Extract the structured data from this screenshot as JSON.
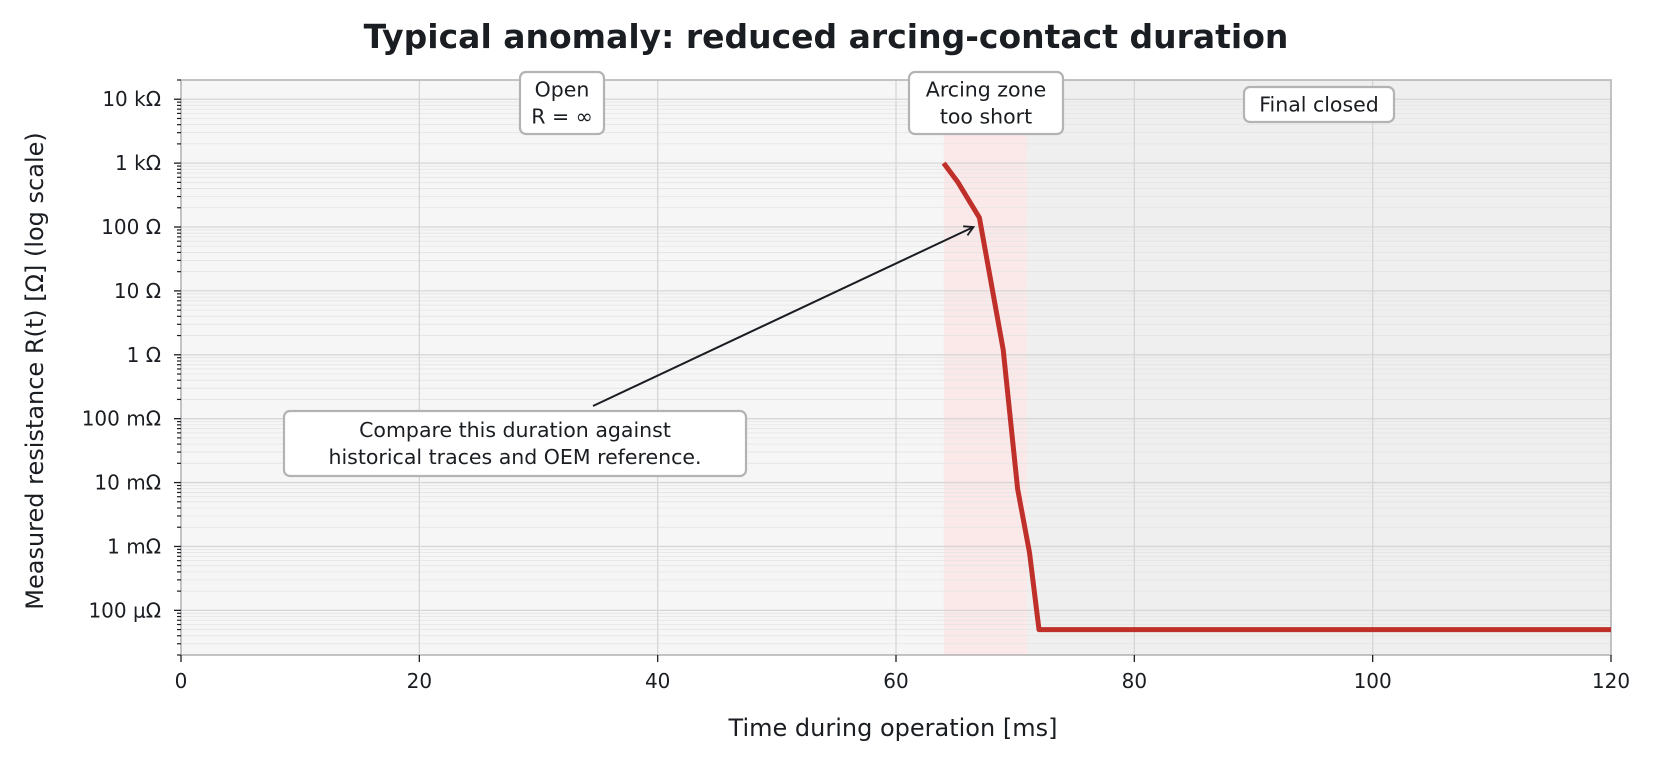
{
  "chart_data": {
    "type": "line",
    "title": "Typical anomaly: reduced arcing-contact duration",
    "xlabel": "Time during operation [ms]",
    "ylabel": "Measured resistance R(t) [Ω] (log scale)",
    "xlim": [
      0,
      120
    ],
    "ylim": [
      2e-05,
      20000
    ],
    "yscale": "log",
    "grid": true,
    "x_ticks": [
      0,
      20,
      40,
      60,
      80,
      100,
      120
    ],
    "y_ticks": [
      {
        "value": 0.0001,
        "label": "100 μΩ"
      },
      {
        "value": 0.001,
        "label": "1 mΩ"
      },
      {
        "value": 0.01,
        "label": "10 mΩ"
      },
      {
        "value": 0.1,
        "label": "100 mΩ"
      },
      {
        "value": 1,
        "label": "1 Ω"
      },
      {
        "value": 10,
        "label": "10 Ω"
      },
      {
        "value": 100,
        "label": "100 Ω"
      },
      {
        "value": 1000,
        "label": "1 kΩ"
      },
      {
        "value": 10000,
        "label": "10 kΩ"
      }
    ],
    "regions": [
      {
        "name": "open",
        "x": [
          0,
          64
        ],
        "color": "#f6f6f6"
      },
      {
        "name": "arcing",
        "x": [
          64,
          71
        ],
        "color": "#fbe9ea"
      },
      {
        "name": "closed",
        "x": [
          71,
          120
        ],
        "color": "#efefef"
      }
    ],
    "series": [
      {
        "color": "#c0302a",
        "x": [
          64,
          65.2,
          67,
          69,
          70.2,
          71.2,
          72,
          120
        ],
        "y": [
          1000,
          500,
          140,
          1.2,
          0.008,
          0.0008,
          5e-05,
          5e-05
        ]
      }
    ],
    "annotations": [
      {
        "name": "open",
        "lines": [
          "Open",
          "R = ∞"
        ]
      },
      {
        "name": "arcing",
        "lines": [
          "Arcing zone",
          "too short"
        ]
      },
      {
        "name": "closed",
        "lines": [
          "Final closed"
        ]
      },
      {
        "name": "compare",
        "lines": [
          "Compare this duration against",
          "historical traces and OEM reference."
        ],
        "arrow_to": {
          "x": 66.5,
          "y": 100
        }
      }
    ]
  }
}
